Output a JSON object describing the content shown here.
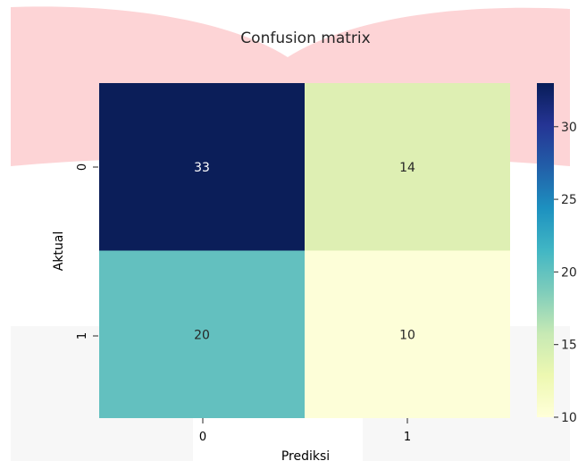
{
  "chart_data": {
    "type": "heatmap",
    "title": "Confusion matrix",
    "xlabel": "Prediksi",
    "ylabel": "Aktual",
    "x_categories": [
      "0",
      "1"
    ],
    "y_categories": [
      "0",
      "1"
    ],
    "values": [
      [
        33,
        14
      ],
      [
        20,
        10
      ]
    ],
    "colormap": "YlGnBu",
    "colorbar": {
      "range": [
        10,
        33
      ],
      "ticks": [
        10,
        15,
        20,
        25,
        30
      ],
      "tick_labels": [
        "10",
        "15",
        "20",
        "25",
        "30"
      ]
    },
    "cell_colors": [
      [
        "#0b1e59",
        "#deefb3"
      ],
      [
        "#63c0bf",
        "#fdfed8"
      ]
    ]
  }
}
